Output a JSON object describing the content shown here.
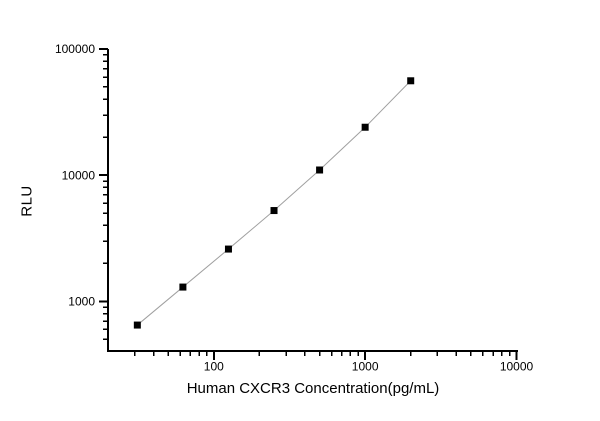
{
  "figure": {
    "background": "#ffffff"
  },
  "chart_data": {
    "type": "scatter",
    "connect_points": true,
    "x": [
      31.25,
      62.5,
      125,
      250,
      500,
      1000,
      2000
    ],
    "y": [
      650,
      1300,
      2600,
      5250,
      11000,
      24000,
      56000
    ],
    "xlabel": "Human CXCR3 Concentration(pg/mL)",
    "ylabel": "RLU",
    "xscale": "log",
    "yscale": "log",
    "xlim": [
      20,
      10230
    ],
    "ylim": [
      405,
      100000
    ],
    "x_major_ticks": [
      100,
      1000,
      10000
    ],
    "x_tick_labels": [
      "100",
      "1000",
      "10000"
    ],
    "y_major_ticks": [
      1000,
      10000,
      100000
    ],
    "y_tick_labels": [
      "1000",
      "10000",
      "100000"
    ],
    "grid": false,
    "legend": false,
    "marker": "filled-square",
    "marker_size": 7,
    "marker_color": "#000000",
    "line_color": "#a0a0a0",
    "axis_color": "#000000",
    "tick_label_color": "#000000",
    "tick_label_font_size": 12
  }
}
